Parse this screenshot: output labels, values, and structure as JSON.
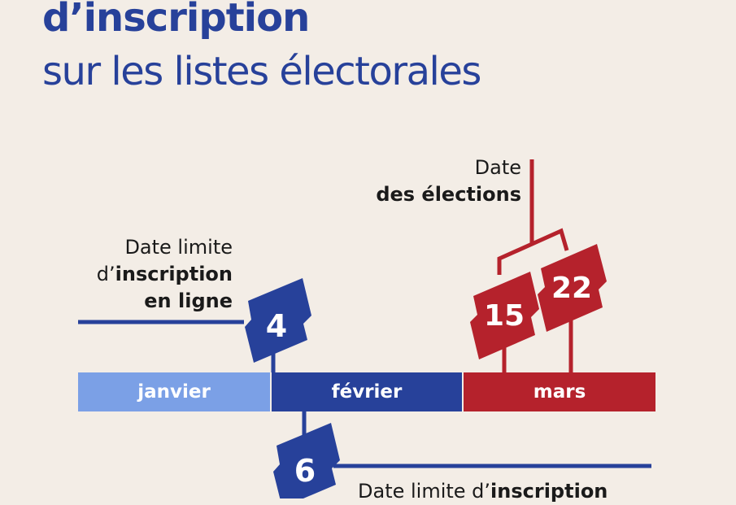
{
  "title": {
    "line1": "d’inscription",
    "line2": "sur les listes électorales"
  },
  "months": [
    {
      "label": "janvier",
      "color": "#7ba0e6"
    },
    {
      "label": "février",
      "color": "#27419a"
    },
    {
      "label": "mars",
      "color": "#b5222c"
    }
  ],
  "labels": {
    "online": {
      "line1": "Date limite",
      "line2_prefix": "d’",
      "line2_bold": "inscription",
      "line3_bold": "en ligne"
    },
    "elections": {
      "line1": "Date",
      "line2_bold": "des élections"
    },
    "bottom": {
      "prefix": "Date limite d’",
      "bold": "inscription"
    }
  },
  "dates": {
    "online_deadline": "4",
    "paper_deadline": "6",
    "election_round1": "15",
    "election_round2": "22"
  },
  "colors": {
    "background": "#f3ede6",
    "title": "#27419a",
    "blue": "#27419a",
    "light_blue": "#7ba0e6",
    "red": "#b5222c"
  }
}
